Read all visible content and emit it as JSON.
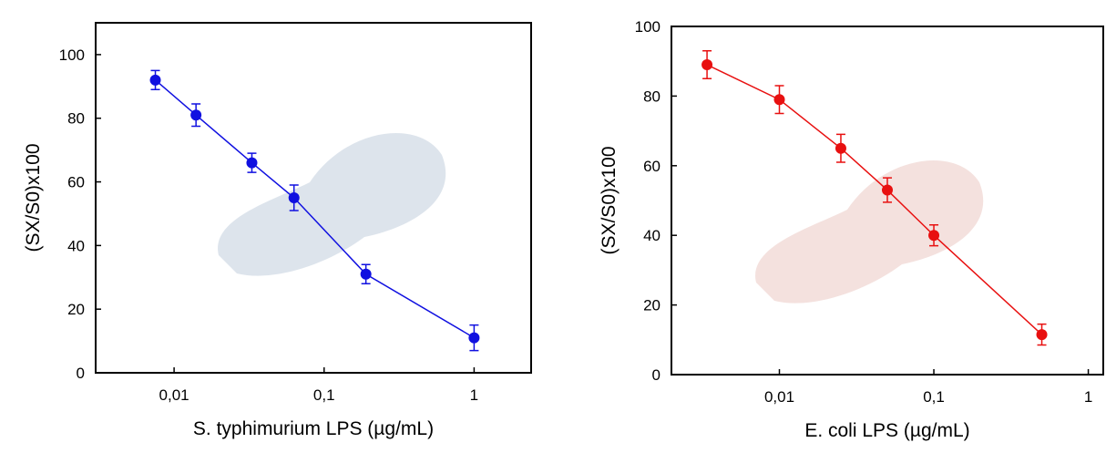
{
  "chart_data": [
    {
      "type": "scatter",
      "xlabel": "S. typhimurium LPS (µg/mL)",
      "ylabel": "(SX/S0)x100",
      "xscale": "log",
      "xlim": [
        0.003,
        2.4
      ],
      "ylim": [
        0,
        110
      ],
      "xticks": [
        {
          "value": 0.01,
          "label": "0,01"
        },
        {
          "value": 0.1,
          "label": "0,1"
        },
        1
      ],
      "yticks": [
        0,
        20,
        40,
        60,
        80,
        100
      ],
      "series": [
        {
          "color": "#1010e0",
          "x": [
            0.0075,
            0.014,
            0.033,
            0.063,
            0.19,
            1
          ],
          "values": [
            92,
            81,
            66,
            55,
            31,
            11
          ],
          "errors": [
            3,
            3.5,
            3,
            4,
            3,
            4
          ]
        }
      ]
    },
    {
      "type": "scatter",
      "xlabel": "E. coli LPS (µg/mL)",
      "ylabel": "(SX/S0)x100",
      "xscale": "log",
      "xlim": [
        0.002,
        1.25
      ],
      "ylim": [
        0,
        100
      ],
      "xticks": [
        {
          "value": 0.01,
          "label": "0,01"
        },
        {
          "value": 0.1,
          "label": "0,1"
        },
        1
      ],
      "yticks": [
        0,
        20,
        40,
        60,
        80,
        100
      ],
      "series": [
        {
          "color": "#e81010",
          "x": [
            0.0034,
            0.01,
            0.025,
            0.05,
            0.1,
            0.5
          ],
          "values": [
            89,
            79,
            65,
            53,
            40,
            11.5
          ],
          "errors": [
            4,
            4,
            4,
            3.5,
            3,
            3
          ]
        }
      ]
    }
  ]
}
